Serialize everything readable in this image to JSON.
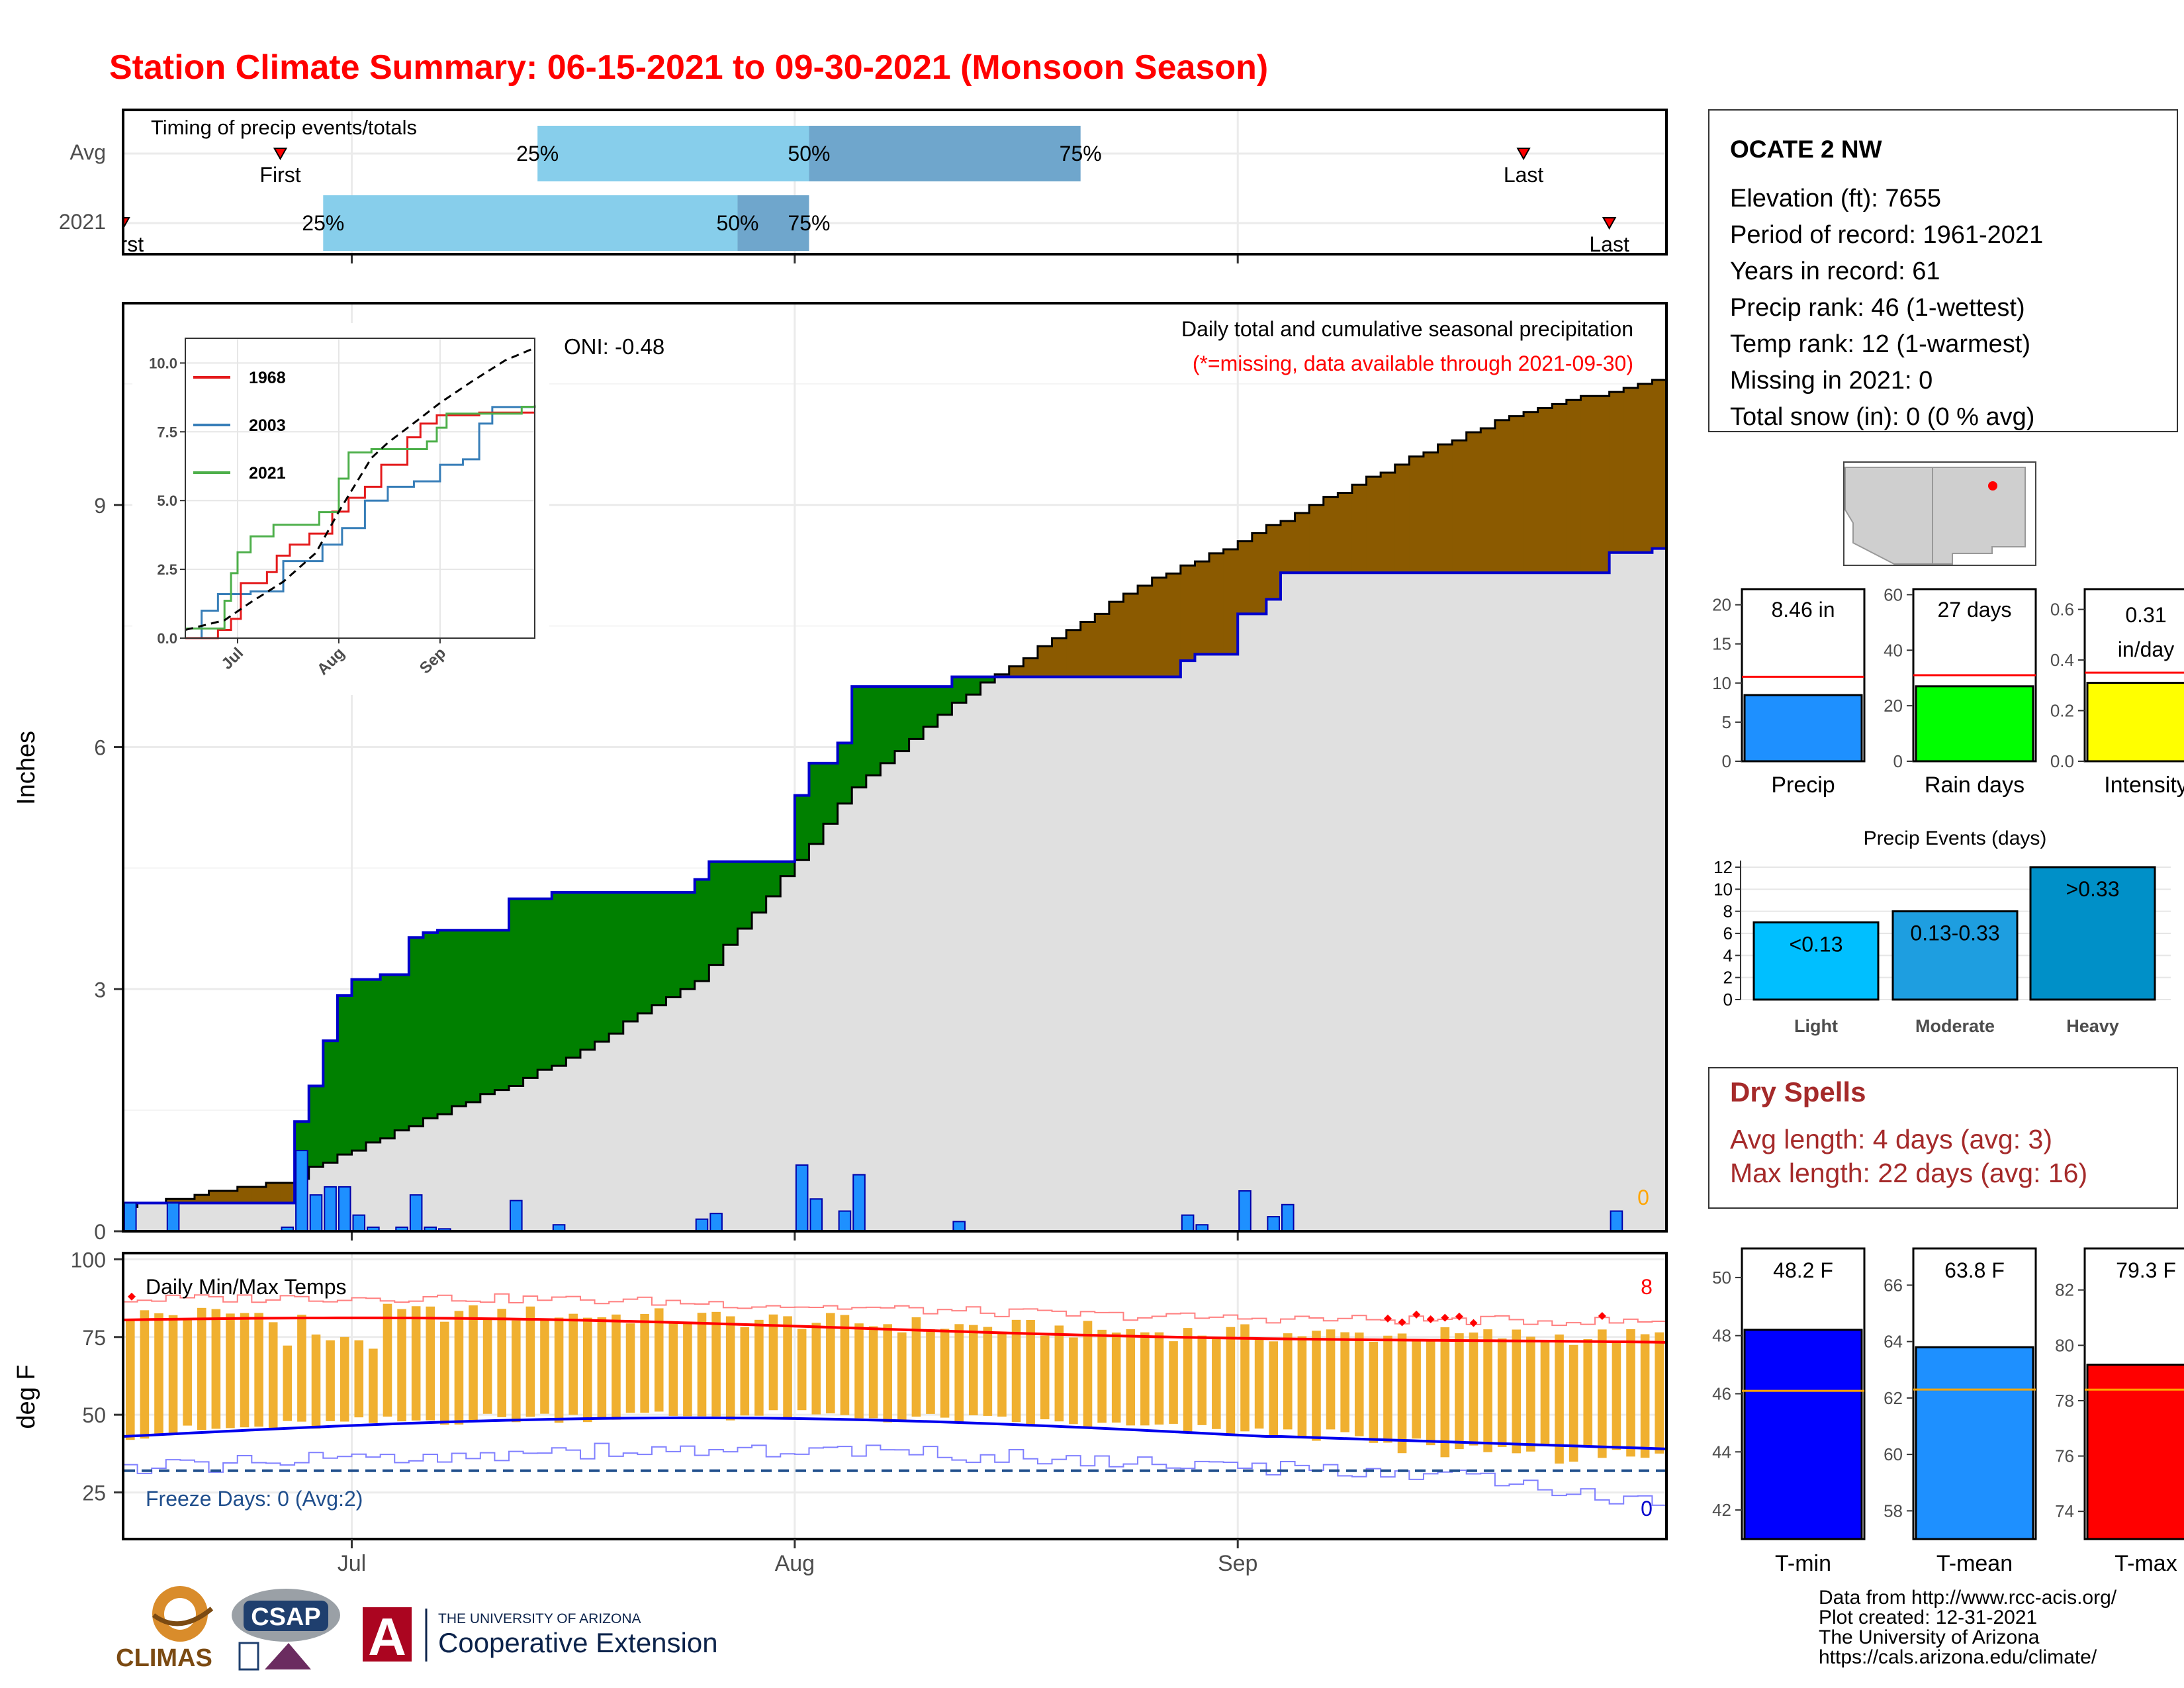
{
  "title": "Station Climate Summary: 06-15-2021 to 09-30-2021 (Monsoon Season)",
  "colors": {
    "title": "#ff0000",
    "light_blue": "#87ceeb",
    "steel_blue": "#6fa6cc",
    "green_deficit": "#008000",
    "brown_surplus": "#8b5a00",
    "gray_fill": "#e0e0e0",
    "precip_blue": "#1e90ff",
    "tmax_red": "#ff0000",
    "tmin_blue": "#0000ee",
    "bar_orange": "#f0b030",
    "freeze_line": "#1f4e8c",
    "dry_spells_text": "#a52a2a"
  },
  "timing_panel": {
    "label": "Timing of precip events/totals",
    "rows": [
      {
        "name": "Avg",
        "first": "06-26",
        "q25": "07-14",
        "q50": "08-02",
        "q75": "08-21",
        "last": "09-21",
        "labels": {
          "first": "First",
          "q25": "25%",
          "q50": "50%",
          "q75": "75%",
          "last": "Last"
        }
      },
      {
        "name": "2021",
        "first": "06-15",
        "q25": "06-29",
        "q50": "07-28",
        "q75": "08-02",
        "last": "09-27",
        "labels": {
          "first": "First",
          "q25": "25%",
          "q50": "50%",
          "q75": "75%",
          "last": "Last"
        }
      }
    ]
  },
  "precip_panel": {
    "ylabel": "Inches",
    "yticks": [
      0,
      3,
      6,
      9
    ],
    "ylim": [
      0,
      11.5
    ],
    "oni_label": "ONI: -0.48",
    "note_line1": "Daily total and cumulative seasonal precipitation",
    "note_line2": "(*=missing, data available through 2021-09-30)",
    "missing_count": "0",
    "daily_bars": [
      {
        "date": "06-15",
        "value": 0.35
      },
      {
        "date": "06-18",
        "value": 0.35
      },
      {
        "date": "06-26",
        "value": 0.05
      },
      {
        "date": "06-27",
        "value": 1.0
      },
      {
        "date": "06-28",
        "value": 0.45
      },
      {
        "date": "06-29",
        "value": 0.55
      },
      {
        "date": "06-30",
        "value": 0.55
      },
      {
        "date": "07-01",
        "value": 0.2
      },
      {
        "date": "07-02",
        "value": 0.05
      },
      {
        "date": "07-04",
        "value": 0.05
      },
      {
        "date": "07-05",
        "value": 0.45
      },
      {
        "date": "07-06",
        "value": 0.05
      },
      {
        "date": "07-07",
        "value": 0.03
      },
      {
        "date": "07-12",
        "value": 0.38
      },
      {
        "date": "07-15",
        "value": 0.08
      },
      {
        "date": "07-25",
        "value": 0.15
      },
      {
        "date": "07-26",
        "value": 0.22
      },
      {
        "date": "08-01",
        "value": 0.82
      },
      {
        "date": "08-02",
        "value": 0.4
      },
      {
        "date": "08-04",
        "value": 0.25
      },
      {
        "date": "08-05",
        "value": 0.7
      },
      {
        "date": "08-12",
        "value": 0.12
      },
      {
        "date": "08-28",
        "value": 0.2
      },
      {
        "date": "08-29",
        "value": 0.08
      },
      {
        "date": "09-01",
        "value": 0.5
      },
      {
        "date": "09-03",
        "value": 0.18
      },
      {
        "date": "09-04",
        "value": 0.33
      },
      {
        "date": "09-27",
        "value": 0.25
      }
    ],
    "cumulative_2021": [
      {
        "date": "06-15",
        "value": 0.35
      },
      {
        "date": "06-19",
        "value": 0.35
      },
      {
        "date": "06-27",
        "value": 1.36
      },
      {
        "date": "06-28",
        "value": 1.8
      },
      {
        "date": "06-29",
        "value": 2.36
      },
      {
        "date": "06-30",
        "value": 2.92
      },
      {
        "date": "07-01",
        "value": 3.12
      },
      {
        "date": "07-03",
        "value": 3.18
      },
      {
        "date": "07-05",
        "value": 3.64
      },
      {
        "date": "07-06",
        "value": 3.7
      },
      {
        "date": "07-07",
        "value": 3.73
      },
      {
        "date": "07-12",
        "value": 4.12
      },
      {
        "date": "07-15",
        "value": 4.2
      },
      {
        "date": "07-25",
        "value": 4.36
      },
      {
        "date": "07-26",
        "value": 4.58
      },
      {
        "date": "08-01",
        "value": 5.4
      },
      {
        "date": "08-02",
        "value": 5.8
      },
      {
        "date": "08-04",
        "value": 6.05
      },
      {
        "date": "08-05",
        "value": 6.75
      },
      {
        "date": "08-12",
        "value": 6.87
      },
      {
        "date": "08-28",
        "value": 7.07
      },
      {
        "date": "08-29",
        "value": 7.15
      },
      {
        "date": "09-01",
        "value": 7.65
      },
      {
        "date": "09-03",
        "value": 7.83
      },
      {
        "date": "09-04",
        "value": 8.16
      },
      {
        "date": "09-27",
        "value": 8.41
      },
      {
        "date": "09-30",
        "value": 8.46
      }
    ],
    "cumulative_avg": [
      {
        "date": "06-15",
        "value": 0.3
      },
      {
        "date": "06-27",
        "value": 0.65
      },
      {
        "date": "06-28",
        "value": 0.8
      },
      {
        "date": "07-05",
        "value": 1.3
      },
      {
        "date": "07-15",
        "value": 2.05
      },
      {
        "date": "07-25",
        "value": 3.1
      },
      {
        "date": "08-01",
        "value": 4.6
      },
      {
        "date": "08-05",
        "value": 5.5
      },
      {
        "date": "08-12",
        "value": 6.55
      },
      {
        "date": "08-15",
        "value": 6.9
      },
      {
        "date": "08-25",
        "value": 8.0
      },
      {
        "date": "09-01",
        "value": 8.55
      },
      {
        "date": "09-10",
        "value": 9.35
      },
      {
        "date": "09-20",
        "value": 10.1
      },
      {
        "date": "09-30",
        "value": 10.55
      }
    ]
  },
  "inset": {
    "yticks": [
      "0.0",
      "2.5",
      "5.0",
      "7.5",
      "10.0"
    ],
    "xticks": [
      "Jul",
      "Aug",
      "Sep"
    ],
    "legend": [
      {
        "name": "1968",
        "color": "#e41a1c"
      },
      {
        "name": "2003",
        "color": "#377eb8"
      },
      {
        "name": "2021",
        "color": "#4daf4a"
      }
    ],
    "series_1968": [
      [
        0,
        0
      ],
      [
        10,
        0.3
      ],
      [
        14,
        0.7
      ],
      [
        17,
        2.0
      ],
      [
        25,
        2.4
      ],
      [
        28,
        3.0
      ],
      [
        32,
        3.4
      ],
      [
        38,
        3.8
      ],
      [
        45,
        4.6
      ],
      [
        50,
        5.1
      ],
      [
        55,
        5.5
      ],
      [
        60,
        6.3
      ],
      [
        68,
        7.3
      ],
      [
        72,
        7.8
      ],
      [
        77,
        8.1
      ],
      [
        84,
        8.1
      ],
      [
        90,
        8.2
      ],
      [
        107,
        8.2
      ]
    ],
    "series_2003": [
      [
        0,
        0
      ],
      [
        5,
        1.0
      ],
      [
        10,
        1.6
      ],
      [
        20,
        1.7
      ],
      [
        30,
        2.8
      ],
      [
        42,
        3.4
      ],
      [
        48,
        4.0
      ],
      [
        55,
        5.0
      ],
      [
        62,
        5.5
      ],
      [
        70,
        5.7
      ],
      [
        78,
        6.3
      ],
      [
        85,
        6.5
      ],
      [
        90,
        7.8
      ],
      [
        94,
        8.4
      ],
      [
        107,
        8.4
      ]
    ],
    "series_2021": [
      [
        0,
        0.35
      ],
      [
        4,
        0.35
      ],
      [
        12,
        1.36
      ],
      [
        14,
        2.36
      ],
      [
        16,
        3.12
      ],
      [
        20,
        3.7
      ],
      [
        27,
        4.12
      ],
      [
        41,
        4.58
      ],
      [
        47,
        5.8
      ],
      [
        50,
        6.75
      ],
      [
        57,
        6.87
      ],
      [
        74,
        7.15
      ],
      [
        77,
        7.65
      ],
      [
        80,
        8.16
      ],
      [
        103,
        8.41
      ],
      [
        107,
        8.46
      ]
    ],
    "series_avg": [
      [
        0,
        0.3
      ],
      [
        12,
        0.65
      ],
      [
        20,
        1.3
      ],
      [
        30,
        2.05
      ],
      [
        40,
        3.1
      ],
      [
        47,
        4.6
      ],
      [
        57,
        6.55
      ],
      [
        62,
        7.1
      ],
      [
        72,
        8.0
      ],
      [
        78,
        8.55
      ],
      [
        88,
        9.35
      ],
      [
        98,
        10.1
      ],
      [
        107,
        10.55
      ]
    ]
  },
  "temp_panel": {
    "ylabel": "deg F",
    "yticks": [
      25,
      50,
      75,
      100
    ],
    "ylim": [
      10,
      102
    ],
    "label": "Daily Min/Max Temps",
    "freeze_label": "Freeze Days: 0 (Avg:2)",
    "record_high_count": "8",
    "record_low_count": "0",
    "freeze_line": 32,
    "xticks": [
      "Jul",
      "Aug",
      "Sep"
    ]
  },
  "station": {
    "name": "OCATE 2 NW",
    "lines": [
      "Elevation (ft): 7655",
      "Period of record: 1961-2021",
      "Years in record: 61",
      "Precip rank: 46 (1-wettest)",
      "Temp rank: 12 (1-warmest)",
      "Missing in 2021: 0",
      "Total snow (in): 0 (0 % avg)"
    ]
  },
  "mini_bars": [
    {
      "label": "Precip",
      "value_label": "8.46 in",
      "value": 8.46,
      "avg": 10.8,
      "ymax": 22,
      "yticks": [
        "0",
        "5",
        "10",
        "15",
        "20"
      ],
      "tick_vals": [
        0,
        5,
        10,
        15,
        20
      ],
      "color": "#1e90ff"
    },
    {
      "label": "Rain days",
      "value_label": "27 days",
      "value": 27,
      "avg": 31,
      "ymax": 62,
      "yticks": [
        "0",
        "20",
        "40",
        "60"
      ],
      "tick_vals": [
        0,
        20,
        40,
        60
      ],
      "color": "#00ff00"
    },
    {
      "label": "Intensity",
      "value_label": "0.31",
      "value_label2": "in/day",
      "value": 0.31,
      "avg": 0.35,
      "ymax": 0.68,
      "yticks": [
        "0.0",
        "0.2",
        "0.4",
        "0.6"
      ],
      "tick_vals": [
        0,
        0.2,
        0.4,
        0.6
      ],
      "color": "#ffff00"
    }
  ],
  "precip_events": {
    "title": "Precip Events (days)",
    "yticks": [
      "0",
      "2",
      "4",
      "6",
      "8",
      "10",
      "12"
    ],
    "bars": [
      {
        "label": "Light",
        "value": 7,
        "text": "<0.13"
      },
      {
        "label": "Moderate",
        "value": 8,
        "text": "0.13-0.33"
      },
      {
        "label": "Heavy",
        "value": 12,
        "text": ">0.33"
      }
    ]
  },
  "dry_spells": {
    "title": "Dry Spells",
    "avg_line": "Avg length: 4 days (avg: 3)",
    "max_line": "Max length: 22 days (avg: 16)"
  },
  "temp_bars": [
    {
      "label": "T-min",
      "value_label": "48.2 F",
      "value": 48.2,
      "avg": 46.1,
      "ymin": 41,
      "ymax": 51,
      "yticks": [
        "42",
        "44",
        "46",
        "48",
        "50"
      ],
      "tick_vals": [
        42,
        44,
        46,
        48,
        50
      ],
      "color": "#0000ff"
    },
    {
      "label": "T-mean",
      "value_label": "63.8 F",
      "value": 63.8,
      "avg": 62.3,
      "ymin": 57,
      "ymax": 67.3,
      "yticks": [
        "58",
        "60",
        "62",
        "64",
        "66"
      ],
      "tick_vals": [
        58,
        60,
        62,
        64,
        66
      ],
      "color": "#1e90ff"
    },
    {
      "label": "T-max",
      "value_label": "79.3 F",
      "value": 79.3,
      "avg": 78.4,
      "ymin": 73,
      "ymax": 83.5,
      "yticks": [
        "74",
        "76",
        "78",
        "80",
        "82"
      ],
      "tick_vals": [
        74,
        76,
        78,
        80,
        82
      ],
      "color": "#ff0000"
    }
  ],
  "footer": {
    "lines": [
      "Data from http://www.rcc-acis.org/",
      "Plot created: 12-31-2021",
      "The University of Arizona",
      "https://cals.arizona.edu/climate/"
    ],
    "logo_climas": "CLIMAS",
    "logo_csap": "CSAP",
    "logo_ua_top": "THE UNIVERSITY OF ARIZONA",
    "logo_ua_bottom": "Cooperative Extension",
    "logo_ua_letter": "A"
  }
}
